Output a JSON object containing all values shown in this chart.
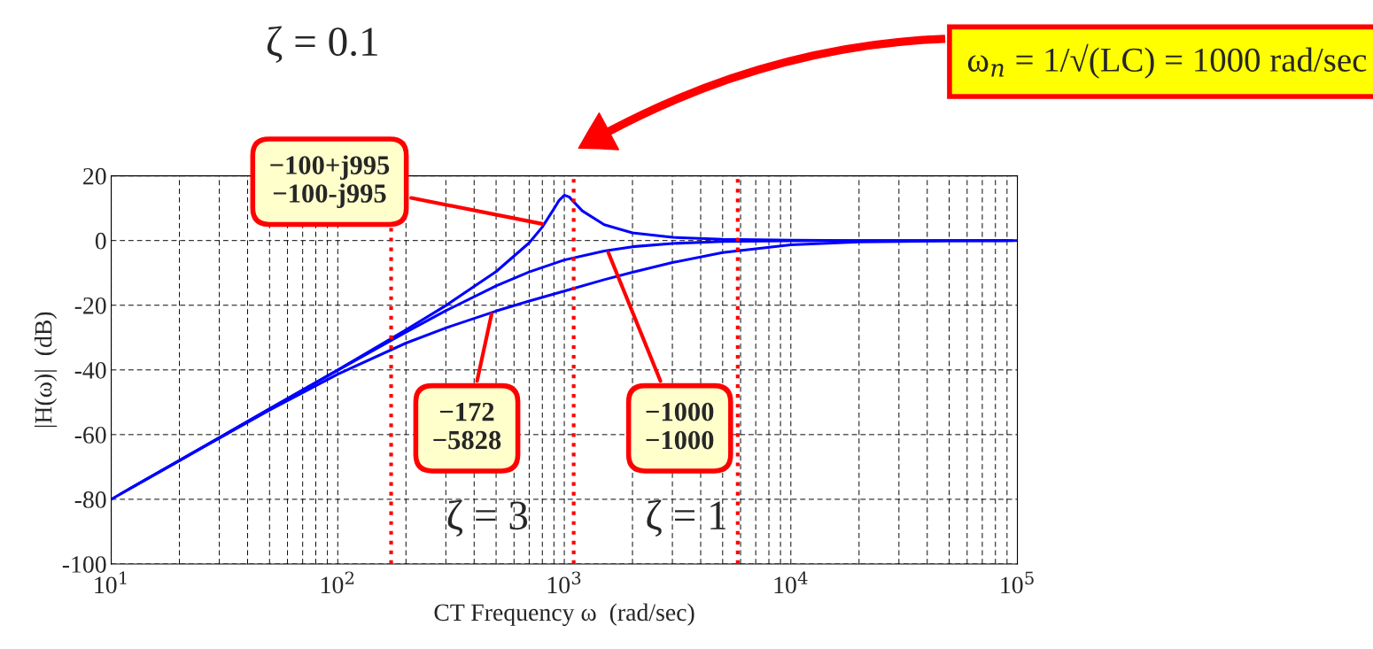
{
  "chart_data": {
    "type": "line",
    "xlabel": "CT Frequency ω  (rad/sec)",
    "ylabel": "|H(ω)|  (dB)",
    "log": "x",
    "grid": true,
    "legend": false,
    "marker": "none",
    "line_style": "solid",
    "xlim": [
      10,
      100000
    ],
    "xticks": [
      {
        "value": 10,
        "label": "10$^{1}$"
      },
      {
        "value": 100,
        "label": "10$^{2}$"
      },
      {
        "value": 1000,
        "label": "10$^{3}$"
      },
      {
        "value": 10000,
        "label": "10$^{4}$"
      },
      {
        "value": 100000,
        "label": "10$^{5}$"
      }
    ],
    "ylim": [
      -100,
      20
    ],
    "yticks": [
      -100,
      -80,
      -60,
      -40,
      -20,
      0,
      20
    ],
    "series": [
      {
        "color": "#0000ff",
        "x": [
          10,
          20,
          50,
          100,
          200,
          300,
          500,
          700,
          800,
          900,
          950,
          1000,
          1050,
          1100,
          1200,
          1500,
          2000,
          3000,
          5000,
          10000,
          20000,
          50000,
          100000
        ],
        "values": [
          -80,
          -68,
          -52,
          -40,
          -27.6,
          -20.1,
          -9.6,
          -0.7,
          4.2,
          9.8,
          12.5,
          14,
          13.5,
          12,
          9.2,
          4.9,
          2.4,
          1,
          0.4,
          0.1,
          0,
          0,
          0
        ]
      },
      {
        "color": "#0000ff",
        "x": [
          11,
          20,
          50,
          100,
          200,
          300,
          500,
          700,
          1000,
          1500,
          2000,
          3000,
          5000,
          10000,
          20000,
          50000,
          95000
        ],
        "values": [
          -78.3,
          -68,
          -52.1,
          -40.1,
          -28.3,
          -21.7,
          -14,
          -9.7,
          -6,
          -3.2,
          -1.9,
          -0.9,
          -0.3,
          -0.1,
          0,
          0,
          0
        ]
      },
      {
        "color": "#0000ff",
        "x": [
          12,
          20,
          50,
          100,
          200,
          300,
          500,
          700,
          1000,
          1500,
          2000,
          3000,
          5000,
          10000,
          20000,
          50000,
          90000
        ],
        "values": [
          -76.8,
          -68,
          -52.4,
          -41.3,
          -31.7,
          -27,
          -21.8,
          -18.7,
          -15.6,
          -12.1,
          -9.8,
          -6.8,
          -3.7,
          -1.3,
          -0.4,
          -0.1,
          0
        ]
      }
    ],
    "ref_lines": [
      {
        "axis": "x",
        "value": 172,
        "color": "#ff0000",
        "line_style": "dotted"
      },
      {
        "axis": "x",
        "value": 1100,
        "color": "#ff0000",
        "line_style": "dotted"
      },
      {
        "axis": "x",
        "value": 5828,
        "color": "#ff0000",
        "line_style": "dotted"
      }
    ],
    "annotations": [
      "ζ = 0.1",
      {
        "text": "−100+j995\n−100-j995",
        "x": 820,
        "y": 5
      },
      {
        "text": "−172\n−5828",
        "x": 480,
        "y": -22
      },
      {
        "text": "−1000\n−1000",
        "x": 1550,
        "y": -3
      },
      "ζ = 3",
      "ζ = 1",
      "ω$_{n}$ = 1/√(LC) = 1000 rad/sec"
    ]
  }
}
